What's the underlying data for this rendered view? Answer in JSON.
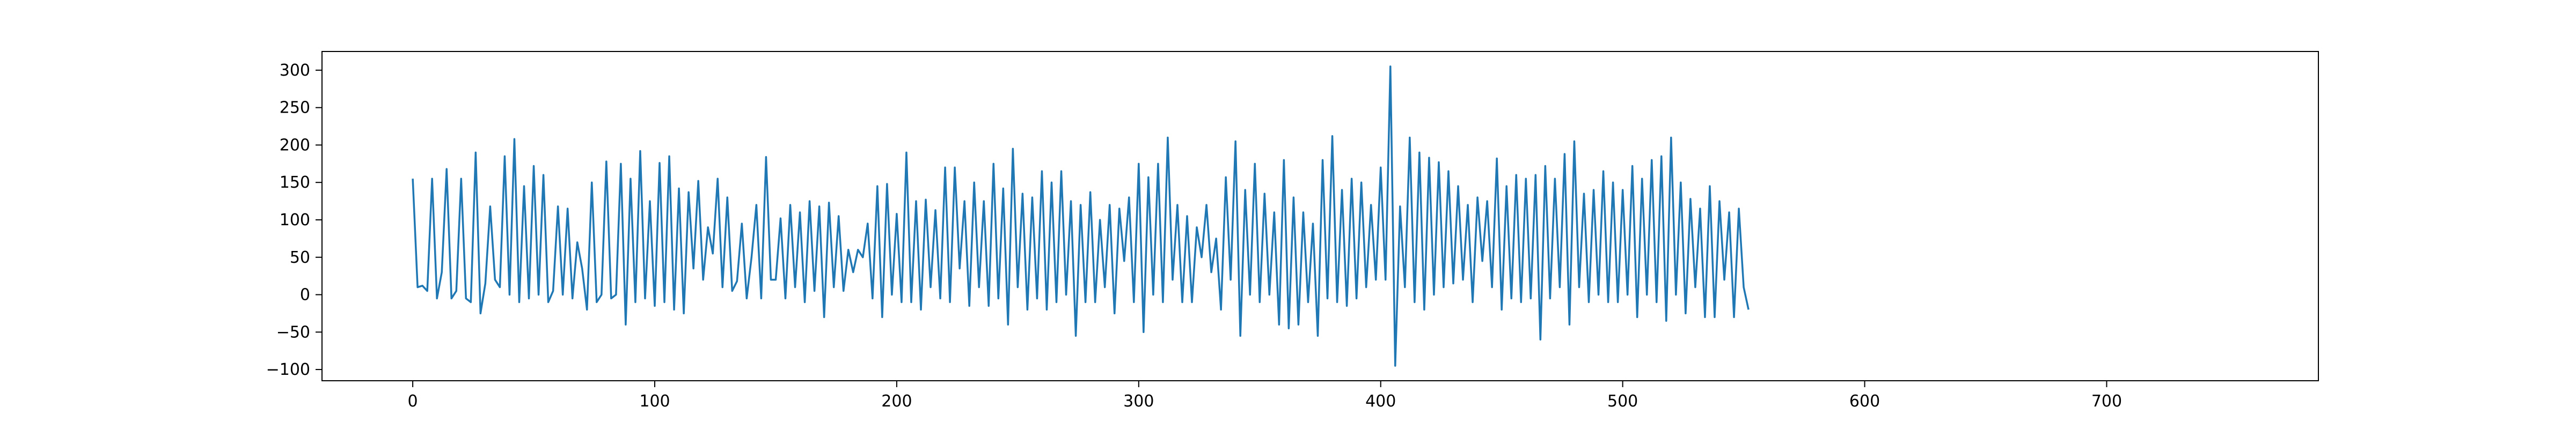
{
  "chart_data": {
    "type": "line",
    "title": "",
    "xlabel": "",
    "ylabel": "",
    "xlim": [
      -37.5,
      787.5
    ],
    "ylim": [
      -115,
      325
    ],
    "grid": false,
    "legend": "none",
    "x_ticks": [
      0,
      100,
      200,
      300,
      400,
      500,
      600,
      700
    ],
    "y_ticks": [
      -100,
      -50,
      0,
      50,
      100,
      150,
      200,
      250,
      300
    ],
    "series": [
      {
        "color": "#1f77b4",
        "x_start": 0,
        "x_step": 2,
        "values": [
          155,
          10,
          12,
          5,
          155,
          -5,
          30,
          168,
          -5,
          5,
          155,
          -5,
          -10,
          190,
          -25,
          15,
          118,
          20,
          10,
          185,
          0,
          208,
          -10,
          145,
          -5,
          172,
          0,
          160,
          -10,
          5,
          118,
          0,
          115,
          -5,
          70,
          35,
          -20,
          150,
          -10,
          0,
          178,
          -5,
          0,
          175,
          -40,
          155,
          -10,
          192,
          -5,
          125,
          -15,
          176,
          -10,
          185,
          -20,
          142,
          -25,
          137,
          35,
          152,
          20,
          90,
          55,
          155,
          10,
          130,
          5,
          18,
          95,
          -5,
          50,
          120,
          -5,
          184,
          20,
          20,
          102,
          -5,
          120,
          10,
          110,
          -10,
          125,
          5,
          118,
          -30,
          123,
          10,
          105,
          5,
          60,
          30,
          60,
          50,
          95,
          -5,
          145,
          -30,
          148,
          0,
          108,
          -10,
          190,
          -10,
          125,
          -20,
          127,
          10,
          113,
          -5,
          170,
          -10,
          170,
          35,
          125,
          -15,
          150,
          10,
          125,
          -15,
          175,
          -5,
          142,
          -40,
          195,
          10,
          135,
          -20,
          130,
          -5,
          165,
          -20,
          150,
          -10,
          165,
          0,
          125,
          -55,
          120,
          -10,
          137,
          -10,
          100,
          10,
          120,
          -25,
          115,
          45,
          130,
          -10,
          175,
          -50,
          157,
          0,
          175,
          -10,
          210,
          20,
          120,
          -10,
          105,
          -10,
          90,
          50,
          120,
          30,
          75,
          -20,
          157,
          20,
          205,
          -55,
          140,
          0,
          175,
          -10,
          135,
          0,
          110,
          -40,
          180,
          -45,
          130,
          -40,
          110,
          -10,
          95,
          -55,
          180,
          -5,
          212,
          -10,
          140,
          -15,
          155,
          -5,
          150,
          10,
          120,
          20,
          170,
          20,
          305,
          -95,
          118,
          10,
          210,
          -10,
          190,
          -20,
          183,
          0,
          177,
          10,
          165,
          15,
          145,
          20,
          120,
          -10,
          130,
          45,
          125,
          10,
          182,
          -20,
          145,
          -5,
          160,
          -10,
          155,
          -5,
          160,
          -60,
          172,
          -5,
          155,
          10,
          188,
          -40,
          205,
          10,
          135,
          -10,
          140,
          0,
          165,
          -10,
          150,
          -10,
          140,
          0,
          172,
          -30,
          155,
          0,
          180,
          -10,
          185,
          -35,
          210,
          0,
          150,
          -25,
          128,
          10,
          115,
          -30,
          145,
          -30,
          125,
          20,
          110,
          -30,
          115,
          10,
          -20
        ]
      }
    ]
  }
}
